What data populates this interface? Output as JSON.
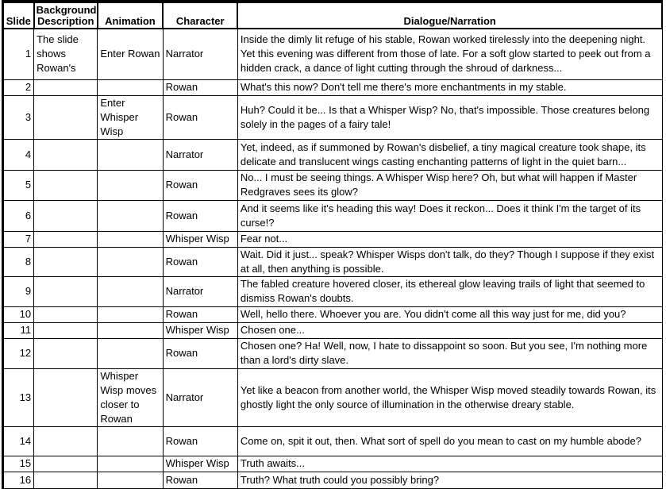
{
  "columns": {
    "slide": "Slide",
    "background": "Background Description",
    "animation": "Animation",
    "character": "Character",
    "dialogue": "Dialogue/Narration"
  },
  "rows": [
    {
      "slide": "1",
      "background": "The slide shows Rowan's",
      "animation": "Enter Rowan",
      "character": "Narrator",
      "dialogue": "Inside the dimly lit refuge of his stable, Rowan worked tirelessly into the deepening night. Yet this evening was different from those of late. For a soft glow started to peek out from a hidden crack, a dance of light cutting through the shroud of darkness..."
    },
    {
      "slide": "2",
      "background": "",
      "animation": "",
      "character": "Rowan",
      "dialogue": "What's this now? Don't tell me there's more enchantments in my stable."
    },
    {
      "slide": "3",
      "background": "",
      "animation": "Enter Whisper Wisp",
      "character": "Rowan",
      "dialogue": "Huh? Could it be... Is that a Whisper Wisp? No, that's impossible. Those creatures belong solely in the pages of a fairy tale!"
    },
    {
      "slide": "4",
      "background": "",
      "animation": "",
      "character": "Narrator",
      "dialogue": "Yet, indeed, as if summoned by Rowan's disbelief, a tiny magical creature took shape, its delicate and translucent wings casting enchanting patterns of light in the quiet barn..."
    },
    {
      "slide": "5",
      "background": "",
      "animation": "",
      "character": "Rowan",
      "dialogue": "No... I must be seeing things. A Whisper Wisp here? Oh, but what will happen if Master Redgraves sees its glow?"
    },
    {
      "slide": "6",
      "background": "",
      "animation": "",
      "character": "Rowan",
      "dialogue": "And it seems like it's heading this way! Does it reckon... Does it think I'm the target of its curse!?"
    },
    {
      "slide": "7",
      "background": "",
      "animation": "",
      "character": "Whisper Wisp",
      "dialogue": "Fear not..."
    },
    {
      "slide": "8",
      "background": "",
      "animation": "",
      "character": "Rowan",
      "dialogue": "Wait. Did it just... speak? Whisper Wisps don't talk, do they? Though I suppose if they exist at all, then anything is possible."
    },
    {
      "slide": "9",
      "background": "",
      "animation": "",
      "character": "Narrator",
      "dialogue": "The fabled creature hovered closer, its ethereal glow leaving trails of light that seemed to dismiss Rowan's doubts."
    },
    {
      "slide": "10",
      "background": "",
      "animation": "",
      "character": "Rowan",
      "dialogue": "Well, hello there. Whoever you are. You didn't come all this way just for me, did you?"
    },
    {
      "slide": "11",
      "background": "",
      "animation": "",
      "character": "Whisper Wisp",
      "dialogue": "Chosen one..."
    },
    {
      "slide": "12",
      "background": "",
      "animation": "",
      "character": "Rowan",
      "dialogue": "Chosen one? Ha! Well, now, I hate to dissappoint so soon. But you see, I'm nothing more than a lord's dirty slave."
    },
    {
      "slide": "13",
      "background": "",
      "animation": "Whisper Wisp moves closer to Rowan",
      "character": "Narrator",
      "dialogue": "Yet like a beacon from another world, the Whisper Wisp moved steadily towards Rowan, its ghostly light the only source of illumination in the otherwise dreary stable."
    },
    {
      "slide": "14",
      "background": "",
      "animation": "",
      "character": "Rowan",
      "dialogue": "Come on, spit it out, then. What sort of spell do you mean to cast on my humble abode?"
    },
    {
      "slide": "15",
      "background": "",
      "animation": "",
      "character": "Whisper Wisp",
      "dialogue": "Truth awaits..."
    },
    {
      "slide": "16",
      "background": "",
      "animation": "",
      "character": "Rowan",
      "dialogue": "Truth? What truth could you possibly bring?"
    }
  ]
}
